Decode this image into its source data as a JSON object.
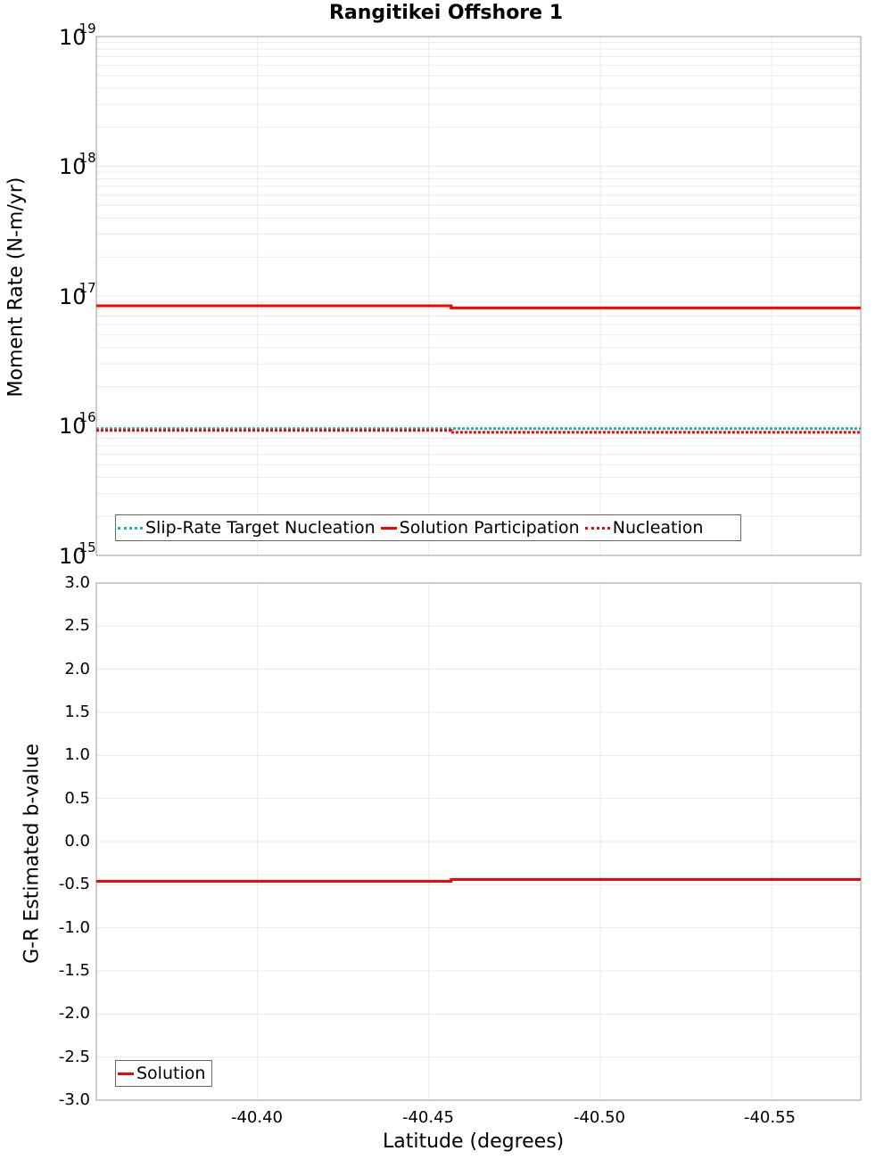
{
  "title": "Rangitikei Offshore 1",
  "colors": {
    "slip_rate_target": "#17b4bd",
    "solution": "#ff0000",
    "nucleation": "#ff0000",
    "grid": "#ebebeb",
    "axis": "#aaaaaa"
  },
  "top_panel": {
    "ylabel": "Moment Rate (N-m/yr)",
    "ticks": [
      {
        "base": "10",
        "exp": "19"
      },
      {
        "base": "10",
        "exp": "18"
      },
      {
        "base": "10",
        "exp": "17"
      },
      {
        "base": "10",
        "exp": "16"
      },
      {
        "base": "10",
        "exp": "15"
      }
    ],
    "legend": [
      {
        "label": "Slip-Rate Target Nucleation",
        "style": "dotted",
        "color": "#17b4bd"
      },
      {
        "label": "Solution Participation",
        "style": "solid",
        "color": "#ff0000"
      },
      {
        "label": "Nucleation",
        "style": "dotted",
        "color": "#ff0000"
      }
    ]
  },
  "bottom_panel": {
    "ylabel": "G-R Estimated b-value",
    "ticks": [
      "3.0",
      "2.5",
      "2.0",
      "1.5",
      "1.0",
      "0.5",
      "0.0",
      "-0.5",
      "-1.0",
      "-1.5",
      "-2.0",
      "-2.5",
      "-3.0"
    ],
    "legend": [
      {
        "label": "Solution",
        "style": "solid",
        "color": "#ff0000"
      }
    ]
  },
  "xaxis": {
    "label": "Latitude (degrees)",
    "ticks": [
      "-40.40",
      "-40.45",
      "-40.50",
      "-40.55"
    ]
  },
  "chart_data": [
    {
      "type": "line",
      "title": "Rangitikei Offshore 1",
      "xlabel": "Latitude (degrees)",
      "ylabel": "Moment Rate (N-m/yr)",
      "yscale": "log",
      "ylim": [
        1000000000000000.0,
        1e+19
      ],
      "xlim": [
        -40.353,
        -40.576
      ],
      "x_ticks": [
        -40.4,
        -40.45,
        -40.5,
        -40.55
      ],
      "grid": true,
      "legend_position": "lower-left",
      "x": [
        -40.353,
        -40.4565,
        -40.4565,
        -40.576
      ],
      "series": [
        {
          "name": "Slip-Rate Target Nucleation",
          "style": "dotted",
          "color": "#17b4bd",
          "values": [
            9500000000000000.0,
            9500000000000000.0,
            9500000000000000.0,
            9500000000000000.0
          ]
        },
        {
          "name": "Solution Participation",
          "style": "solid",
          "color": "#ff0000",
          "values": [
            8.4e+16,
            8.4e+16,
            8.1e+16,
            8.1e+16
          ]
        },
        {
          "name": "Nucleation",
          "style": "dotted",
          "color": "#ff0000",
          "values": [
            9200000000000000.0,
            9200000000000000.0,
            8900000000000000.0,
            8900000000000000.0
          ]
        }
      ]
    },
    {
      "type": "line",
      "title": "",
      "xlabel": "Latitude (degrees)",
      "ylabel": "G-R Estimated b-value",
      "ylim": [
        -3.0,
        3.0
      ],
      "xlim": [
        -40.353,
        -40.576
      ],
      "y_ticks": [
        3.0,
        2.5,
        2.0,
        1.5,
        1.0,
        0.5,
        0.0,
        -0.5,
        -1.0,
        -1.5,
        -2.0,
        -2.5,
        -3.0
      ],
      "x_ticks": [
        -40.4,
        -40.45,
        -40.5,
        -40.55
      ],
      "grid": true,
      "legend_position": "lower-left",
      "x": [
        -40.353,
        -40.4565,
        -40.4565,
        -40.576
      ],
      "series": [
        {
          "name": "Solution",
          "style": "solid",
          "color": "#ff0000",
          "values": [
            -0.46,
            -0.46,
            -0.44,
            -0.44
          ]
        }
      ]
    }
  ]
}
